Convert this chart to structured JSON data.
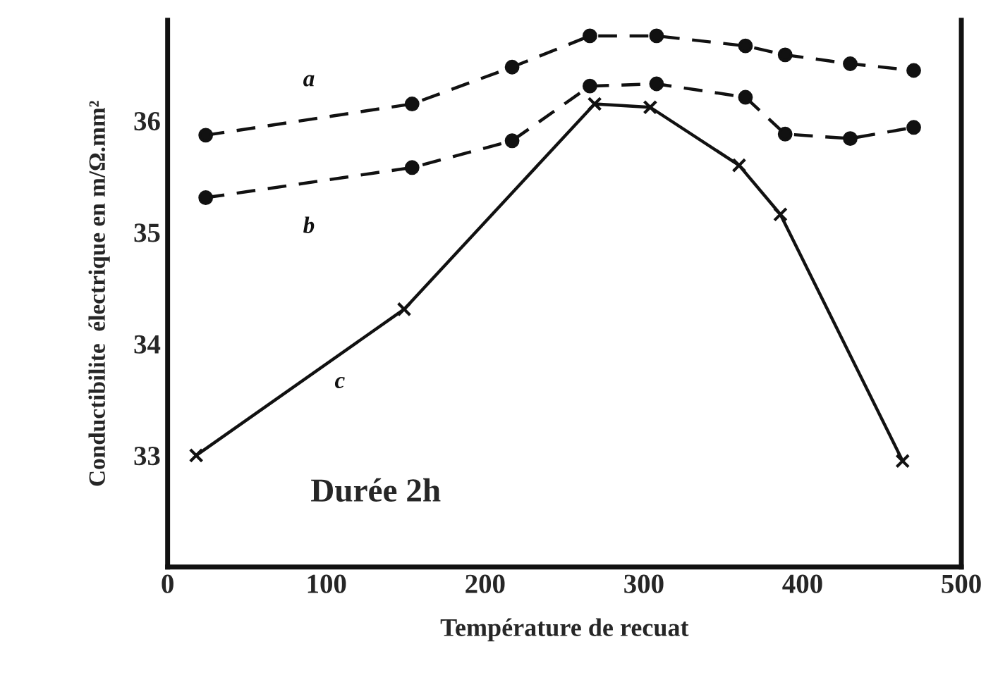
{
  "chart_data": {
    "type": "line",
    "xlabel": "Température de recuat",
    "ylabel": "Conductibilite  électrique en m/Ω.mm²",
    "x": [
      24,
      154,
      217,
      266,
      308,
      364,
      389,
      430,
      470
    ],
    "series": [
      {
        "name": "a",
        "color": "#111111",
        "marker": "circle",
        "line_style": "dashed",
        "values": [
          35.87,
          36.15,
          36.48,
          36.76,
          36.76,
          36.67,
          36.59,
          36.51,
          36.45
        ]
      },
      {
        "name": "b",
        "color": "#111111",
        "marker": "circle",
        "line_style": "dashed",
        "values": [
          35.31,
          35.58,
          35.82,
          36.31,
          36.33,
          36.21,
          35.88,
          35.84,
          35.94
        ]
      },
      {
        "name": "c",
        "color": "#111111",
        "marker": "cross",
        "line_style": "solid",
        "x": [
          18,
          149,
          269,
          304,
          360,
          386,
          463
        ],
        "values": [
          33.0,
          34.31,
          36.15,
          36.12,
          35.6,
          35.16,
          32.95
        ]
      }
    ],
    "xlim": [
      0,
      500
    ],
    "ylim": [
      32,
      36.9
    ],
    "xticks": [
      0,
      100,
      200,
      300,
      400,
      500
    ],
    "yticks": [
      33,
      34,
      35,
      36
    ],
    "grid": false,
    "legend": false,
    "annotations": [
      {
        "text": "Durée 2h"
      }
    ]
  }
}
